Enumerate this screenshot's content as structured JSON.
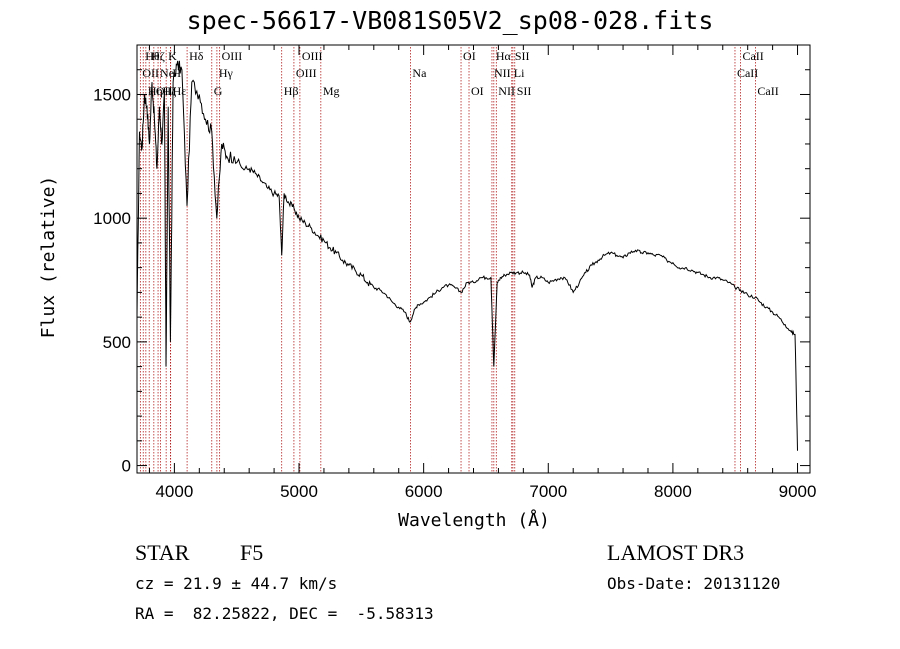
{
  "chart_data": {
    "type": "line",
    "title": "spec-56617-VB081S05V2_sp08-028.fits",
    "xlabel": "Wavelength (Å)",
    "ylabel": "Flux (relative)",
    "xlim": [
      3700,
      9100
    ],
    "ylim": [
      -30,
      1700
    ],
    "xticks": [
      4000,
      5000,
      6000,
      7000,
      8000,
      9000
    ],
    "yticks": [
      0,
      500,
      1000,
      1500
    ],
    "xticklabels": [
      "4000",
      "5000",
      "6000",
      "7000",
      "8000",
      "9000"
    ],
    "yticklabels": [
      "0",
      "500",
      "1000",
      "1500"
    ],
    "spectrum": {
      "x": [
        3700,
        3720,
        3740,
        3760,
        3780,
        3800,
        3820,
        3840,
        3860,
        3880,
        3900,
        3920,
        3933,
        3950,
        3968,
        3990,
        4020,
        4060,
        4101,
        4140,
        4200,
        4250,
        4300,
        4340,
        4380,
        4420,
        4480,
        4550,
        4600,
        4650,
        4700,
        4750,
        4800,
        4840,
        4861,
        4880,
        4920,
        4960,
        5000,
        5050,
        5100,
        5150,
        5200,
        5250,
        5300,
        5350,
        5400,
        5450,
        5500,
        5550,
        5600,
        5650,
        5700,
        5750,
        5800,
        5850,
        5890,
        5920,
        5950,
        6000,
        6050,
        6100,
        6150,
        6200,
        6250,
        6300,
        6350,
        6400,
        6450,
        6500,
        6540,
        6563,
        6590,
        6620,
        6650,
        6700,
        6750,
        6800,
        6850,
        6870,
        6900,
        6950,
        7000,
        7050,
        7100,
        7150,
        7200,
        7250,
        7300,
        7350,
        7400,
        7450,
        7500,
        7550,
        7600,
        7650,
        7700,
        7750,
        7800,
        7850,
        7900,
        7950,
        8000,
        8050,
        8100,
        8150,
        8200,
        8250,
        8300,
        8350,
        8400,
        8450,
        8498,
        8542,
        8600,
        8662,
        8700,
        8750,
        8800,
        8850,
        8900,
        8950,
        8980,
        9000
      ],
      "y": [
        600,
        1350,
        1280,
        1500,
        1450,
        1300,
        1550,
        1400,
        1200,
        1450,
        1300,
        1500,
        400,
        1450,
        500,
        1550,
        1620,
        1600,
        1050,
        1550,
        1500,
        1400,
        1350,
        1000,
        1300,
        1250,
        1250,
        1200,
        1200,
        1180,
        1150,
        1120,
        1100,
        1090,
        850,
        1100,
        1060,
        1040,
        1000,
        980,
        960,
        930,
        910,
        880,
        860,
        830,
        810,
        790,
        770,
        740,
        720,
        710,
        690,
        660,
        640,
        620,
        580,
        620,
        650,
        660,
        680,
        700,
        720,
        730,
        720,
        700,
        740,
        740,
        760,
        760,
        760,
        400,
        740,
        760,
        770,
        780,
        780,
        780,
        770,
        720,
        760,
        760,
        740,
        750,
        760,
        750,
        700,
        740,
        780,
        810,
        830,
        850,
        860,
        850,
        840,
        860,
        870,
        860,
        860,
        850,
        850,
        830,
        820,
        800,
        800,
        790,
        780,
        770,
        760,
        760,
        750,
        740,
        720,
        710,
        690,
        680,
        660,
        640,
        620,
        600,
        570,
        540,
        530,
        60
      ]
    },
    "lines": [
      {
        "wl": 3727,
        "label": "OII",
        "row": 2
      },
      {
        "wl": 3750,
        "label": "Hθ",
        "row": 1
      },
      {
        "wl": 3771,
        "label": "Hη",
        "row": 3
      },
      {
        "wl": 3798,
        "label": "Hζ",
        "row": 1
      },
      {
        "wl": 3835,
        "label": "OII",
        "row": 3
      },
      {
        "wl": 3869,
        "label": "Ne",
        "row": 2
      },
      {
        "wl": 3889,
        "label": "Hζ",
        "row": 3
      },
      {
        "wl": 3934,
        "label": "K",
        "row": 1
      },
      {
        "wl": 3968,
        "label": "H",
        "row": 2
      },
      {
        "wl": 3970,
        "label": "Hε",
        "row": 3
      },
      {
        "wl": 4102,
        "label": "Hδ",
        "row": 1
      },
      {
        "wl": 4300,
        "label": "G",
        "row": 3
      },
      {
        "wl": 4341,
        "label": "Hγ",
        "row": 2
      },
      {
        "wl": 4363,
        "label": "OIII",
        "row": 1
      },
      {
        "wl": 4861,
        "label": "Hβ",
        "row": 3
      },
      {
        "wl": 4959,
        "label": "OIII",
        "row": 2
      },
      {
        "wl": 5007,
        "label": "OIII",
        "row": 1
      },
      {
        "wl": 5175,
        "label": "Mg",
        "row": 3
      },
      {
        "wl": 5894,
        "label": "Na",
        "row": 2
      },
      {
        "wl": 6300,
        "label": "OI",
        "row": 1
      },
      {
        "wl": 6364,
        "label": "OI",
        "row": 3
      },
      {
        "wl": 6548,
        "label": "NII",
        "row": 2
      },
      {
        "wl": 6563,
        "label": "Hα",
        "row": 1
      },
      {
        "wl": 6583,
        "label": "NII",
        "row": 3
      },
      {
        "wl": 6707,
        "label": "Li",
        "row": 2
      },
      {
        "wl": 6716,
        "label": "SII",
        "row": 1
      },
      {
        "wl": 6731,
        "label": "SII",
        "row": 3
      },
      {
        "wl": 8498,
        "label": "CaII",
        "row": 2
      },
      {
        "wl": 8542,
        "label": "CaII",
        "row": 1
      },
      {
        "wl": 8662,
        "label": "CaII",
        "row": 3
      }
    ]
  },
  "info": {
    "object_class": "STAR",
    "subclass": "F5",
    "survey": "LAMOST DR3",
    "cz": "cz = 21.9 ± 44.7 km/s",
    "obs_date": "Obs-Date: 20131120",
    "coords": "RA =  82.25822, DEC =  -5.58313"
  },
  "colors": {
    "line_marker": "#b22222",
    "spectrum": "#000000",
    "axes": "#000000"
  }
}
